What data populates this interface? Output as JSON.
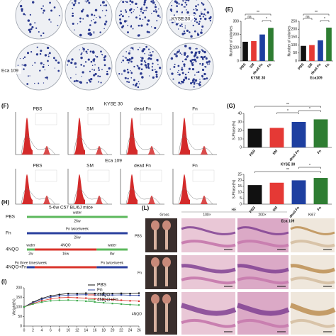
{
  "panel_labels": {
    "E": "(E)",
    "F": "(F)",
    "G": "(G)",
    "H": "(H)",
    "I": "(I)",
    "L": "(L)"
  },
  "colony": {
    "rows": [
      "KYSE 30",
      "Eca 109"
    ]
  },
  "flow": {
    "row_titles": [
      "KYSE 30",
      "Eca 109"
    ],
    "groups": [
      "PBS",
      "SM",
      "dead Fn",
      "Fn"
    ]
  },
  "schedule": {
    "title": "5-6w C57 BL/6J mice",
    "rows": [
      {
        "label": "PBS",
        "segments": [
          {
            "text": "water",
            "color": "#5cb85c"
          }
        ],
        "weeks": [
          "26w"
        ]
      },
      {
        "label": "Fn",
        "segments": [
          {
            "text": "Fn twice/week",
            "color": "#2a3f9e"
          }
        ],
        "weeks": [
          "26w"
        ]
      },
      {
        "label": "4NQO",
        "segments": [
          {
            "text": "water",
            "color": "#5cb85c"
          },
          {
            "text": "4NQO",
            "color": "#d9342b"
          },
          {
            "text": "water",
            "color": "#5cb85c"
          }
        ],
        "weeks": [
          "2w",
          "16w",
          "8w"
        ]
      },
      {
        "label": "4NQO+Fn",
        "segments": [
          {
            "text": "Fn three times/week",
            "color": "#2a3f9e"
          },
          {
            "text": "",
            "color": "#d9342b"
          },
          {
            "text": "Fn twice/week",
            "color": "#2a3f9e"
          }
        ],
        "weeks": []
      }
    ]
  },
  "histology": {
    "headers": [
      "Gross",
      "HE",
      "100×",
      "200×",
      "Ki67"
    ],
    "rows": [
      "PBS",
      "Fn",
      "4NQO"
    ]
  },
  "chart_data": [
    {
      "type": "bar",
      "y_label": "Number of colonies",
      "x_label": "KYSE 30",
      "categories": [
        "PBS",
        "SM",
        "dead Fn",
        "Fn"
      ],
      "values": [
        145,
        150,
        200,
        250
      ],
      "colors": [
        "#111111",
        "#e53935",
        "#1e3fa0",
        "#2e7d32"
      ],
      "ylim": [
        0,
        300
      ],
      "yticks": [
        0,
        100,
        200,
        300
      ],
      "annotations": [
        "**",
        "ns",
        "*"
      ]
    },
    {
      "type": "bar",
      "y_label": "Number of colonies",
      "x_label": "Eca109",
      "categories": [
        "PBS",
        "SM",
        "dead Fn",
        "Fn"
      ],
      "values": [
        95,
        100,
        130,
        210
      ],
      "colors": [
        "#111111",
        "#e53935",
        "#1e3fa0",
        "#2e7d32"
      ],
      "ylim": [
        0,
        250
      ],
      "yticks": [
        0,
        50,
        100,
        150,
        200,
        250
      ],
      "annotations": [
        "**",
        "ns",
        "*"
      ]
    },
    {
      "type": "bar",
      "y_label": "S-Phase(%)",
      "x_label": "KYSE 30",
      "categories": [
        "PBS",
        "SM",
        "dead Fn",
        "Fn"
      ],
      "values": [
        22,
        23,
        30,
        33
      ],
      "colors": [
        "#111111",
        "#e53935",
        "#1e3fa0",
        "#2e7d32"
      ],
      "ylim": [
        0,
        40
      ],
      "yticks": [
        0,
        10,
        20,
        30,
        40
      ],
      "annotations": [
        "**",
        "*",
        "*"
      ]
    },
    {
      "type": "bar",
      "y_label": "S-Phase(%)",
      "x_label": "Eca 109",
      "categories": [
        "PBS",
        "SM",
        "dead Fn",
        "Fn"
      ],
      "values": [
        16,
        18,
        20,
        22
      ],
      "colors": [
        "#111111",
        "#e53935",
        "#1e3fa0",
        "#2e7d32"
      ],
      "ylim": [
        0,
        25
      ],
      "yticks": [
        0,
        5,
        10,
        15,
        20,
        25
      ],
      "annotations": [
        "*",
        "**"
      ]
    },
    {
      "type": "line",
      "y_label": "Weight(%)",
      "x": [
        0,
        2,
        4,
        6,
        8,
        10,
        12,
        14,
        16,
        18,
        20,
        22,
        24,
        26
      ],
      "xlim": [
        0,
        26
      ],
      "xticks": [
        0,
        2,
        4,
        6,
        8,
        10,
        12,
        14,
        16,
        18,
        20,
        22,
        24,
        26
      ],
      "ylim": [
        0,
        200
      ],
      "yticks": [
        0,
        50,
        100,
        150,
        200
      ],
      "series": [
        {
          "name": "PBS",
          "color": "#111111",
          "values": [
            100,
            125,
            145,
            158,
            165,
            170,
            170,
            172,
            170,
            172,
            170,
            171,
            170,
            172
          ]
        },
        {
          "name": "Fn",
          "color": "#2a3f9e",
          "values": [
            100,
            122,
            140,
            152,
            158,
            162,
            163,
            164,
            162,
            163,
            162,
            163,
            161,
            160
          ]
        },
        {
          "name": "4NQO",
          "color": "#d9342b",
          "values": [
            100,
            118,
            132,
            142,
            148,
            150,
            148,
            146,
            142,
            140,
            138,
            135,
            132,
            130
          ]
        },
        {
          "name": "4NQO+Fn",
          "color": "#3aa84a",
          "values": [
            100,
            115,
            125,
            132,
            135,
            136,
            133,
            130,
            126,
            122,
            118,
            115,
            112,
            110
          ]
        }
      ]
    }
  ]
}
